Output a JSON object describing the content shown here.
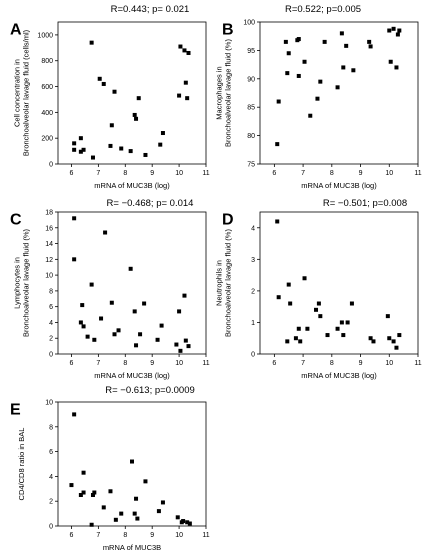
{
  "colors": {
    "marker": "#000000",
    "axis": "#000000",
    "background": "#ffffff"
  },
  "chart_data": [
    {
      "type": "scatter",
      "panel": "A",
      "stat": "R=0.443; p= 0.021",
      "xlabel": "mRNA of MUC3B (log)",
      "ylabel": [
        "Cell concentration in",
        "Bronchoalveolar lavage fluid (cells/ml)"
      ],
      "xlim": [
        5.5,
        11
      ],
      "ylim": [
        0,
        1100
      ],
      "xticks": [
        6,
        7,
        8,
        9,
        10,
        11
      ],
      "yticks": [
        0,
        200,
        400,
        600,
        800,
        1000
      ],
      "x": [
        6.1,
        6.1,
        6.35,
        6.35,
        6.45,
        6.75,
        6.8,
        7.05,
        7.2,
        7.45,
        7.5,
        7.6,
        7.85,
        8.2,
        8.35,
        8.4,
        8.5,
        8.75,
        9.3,
        9.4,
        10.0,
        10.05,
        10.2,
        10.25,
        10.3,
        10.35
      ],
      "y": [
        160,
        110,
        200,
        95,
        110,
        940,
        50,
        660,
        620,
        140,
        300,
        560,
        120,
        100,
        380,
        350,
        510,
        70,
        150,
        240,
        530,
        910,
        880,
        630,
        510,
        860
      ],
      "grid": false,
      "legend": "none"
    },
    {
      "type": "scatter",
      "panel": "B",
      "stat": "R=0.522; p=0.005",
      "xlabel": "mRNA of MUC3B (log)",
      "ylabel": [
        "Macrophages in",
        "Bronchoalveolar lavage fluid (%)"
      ],
      "xlim": [
        5.5,
        11
      ],
      "ylim": [
        75,
        100
      ],
      "xticks": [
        6,
        7,
        8,
        9,
        10,
        11
      ],
      "yticks": [
        75,
        80,
        85,
        90,
        95,
        100
      ],
      "x": [
        6.1,
        6.15,
        6.4,
        6.45,
        6.5,
        6.8,
        6.85,
        6.85,
        7.05,
        7.25,
        7.5,
        7.6,
        7.75,
        8.2,
        8.35,
        8.4,
        8.5,
        8.75,
        9.3,
        9.35,
        10.0,
        10.05,
        10.15,
        10.25,
        10.3,
        10.35
      ],
      "y": [
        78.5,
        86,
        96.5,
        91,
        94.5,
        96.8,
        90.5,
        97,
        93,
        83.5,
        86.5,
        89.5,
        96.5,
        88.5,
        98,
        92,
        95.8,
        91.5,
        96.5,
        95.7,
        98.5,
        93,
        98.8,
        92,
        97.8,
        98.5
      ],
      "grid": false,
      "legend": "none"
    },
    {
      "type": "scatter",
      "panel": "C",
      "stat": "R= −0.468; p= 0.014",
      "xlabel": "mRNA of MUC3B (log)",
      "ylabel": [
        "Lymphocytes in",
        "Bronchoalveolar lavage fluid (%)"
      ],
      "xlim": [
        5.5,
        11
      ],
      "ylim": [
        0,
        18
      ],
      "xticks": [
        6,
        7,
        8,
        9,
        10,
        11
      ],
      "yticks": [
        0,
        2,
        4,
        6,
        8,
        10,
        12,
        14,
        16,
        18
      ],
      "x": [
        6.1,
        6.1,
        6.35,
        6.4,
        6.45,
        6.6,
        6.75,
        6.85,
        7.1,
        7.25,
        7.5,
        7.6,
        7.75,
        8.2,
        8.35,
        8.4,
        8.55,
        8.7,
        9.2,
        9.35,
        9.9,
        10.0,
        10.05,
        10.2,
        10.25,
        10.35
      ],
      "y": [
        17.2,
        12,
        4,
        6.2,
        3.5,
        2.2,
        8.8,
        1.8,
        4.5,
        15.4,
        6.5,
        2.5,
        3.0,
        10.8,
        5.4,
        1.1,
        2.5,
        6.4,
        1.8,
        3.6,
        1.2,
        5.4,
        0.4,
        7.4,
        1.7,
        1.0
      ],
      "grid": false,
      "legend": "none"
    },
    {
      "type": "scatter",
      "panel": "D",
      "stat": "R= −0.501; p=0.008",
      "xlabel": "mRNA of MUC3B (log)",
      "ylabel": [
        "Neutrophils in",
        "Bronchoalveolar lavage fluid (%)"
      ],
      "xlim": [
        5.5,
        11
      ],
      "ylim": [
        0,
        4.5
      ],
      "xticks": [
        6,
        7,
        8,
        9,
        10,
        11
      ],
      "yticks": [
        0,
        1,
        2,
        3,
        4
      ],
      "x": [
        6.1,
        6.15,
        6.45,
        6.5,
        6.55,
        6.75,
        6.85,
        6.9,
        7.05,
        7.15,
        7.45,
        7.55,
        7.6,
        7.85,
        8.2,
        8.35,
        8.4,
        8.55,
        8.7,
        9.35,
        9.45,
        9.95,
        10.0,
        10.15,
        10.25,
        10.35
      ],
      "y": [
        4.2,
        1.8,
        0.4,
        2.2,
        1.6,
        0.5,
        0.8,
        0.4,
        2.4,
        0.8,
        1.4,
        1.6,
        1.2,
        0.6,
        0.8,
        1.0,
        0.6,
        1.0,
        1.6,
        0.5,
        0.4,
        1.2,
        0.5,
        0.4,
        0.2,
        0.6
      ],
      "grid": false,
      "legend": "none"
    },
    {
      "type": "scatter",
      "panel": "E",
      "stat": "R= −0.613; p=0.0009",
      "xlabel": "mRNA of MUC3B",
      "ylabel": [
        "CD4/CD8 ratio in BAL"
      ],
      "xlim": [
        5.5,
        11
      ],
      "ylim": [
        0,
        10
      ],
      "xticks": [
        6,
        7,
        8,
        9,
        10,
        11
      ],
      "yticks": [
        0,
        2,
        4,
        6,
        8,
        10
      ],
      "x": [
        6.0,
        6.1,
        6.35,
        6.45,
        6.45,
        6.75,
        6.8,
        6.85,
        7.2,
        7.45,
        7.65,
        7.85,
        8.25,
        8.35,
        8.4,
        8.45,
        8.75,
        9.25,
        9.4,
        9.95,
        10.1,
        10.15,
        10.3,
        10.4
      ],
      "y": [
        3.3,
        9.0,
        2.5,
        4.3,
        2.7,
        0.1,
        2.5,
        2.7,
        1.5,
        2.8,
        0.5,
        1.0,
        5.2,
        1.0,
        2.2,
        0.6,
        3.6,
        1.2,
        1.9,
        0.7,
        0.3,
        0.4,
        0.3,
        0.2
      ],
      "grid": false,
      "legend": "none"
    }
  ]
}
